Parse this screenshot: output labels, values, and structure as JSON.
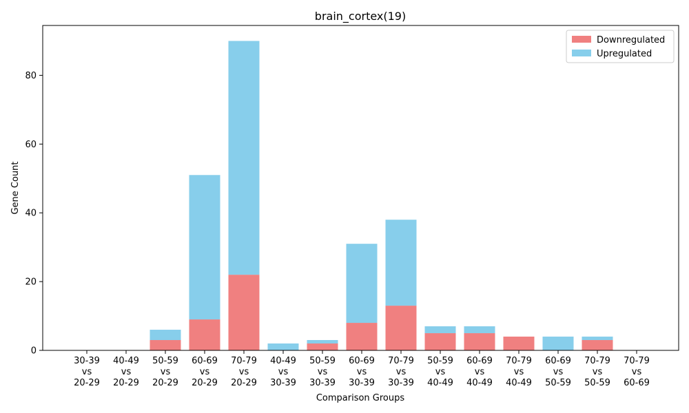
{
  "chart_data": {
    "type": "bar",
    "stacked": true,
    "title": "brain_cortex(19)",
    "xlabel": "Comparison Groups",
    "ylabel": "Gene Count",
    "ylim": [
      0,
      94.5
    ],
    "yticks": [
      0,
      20,
      40,
      60,
      80
    ],
    "grid": false,
    "legend_position": "top-right",
    "categories": [
      [
        "30-39",
        "vs",
        "20-29"
      ],
      [
        "40-49",
        "vs",
        "20-29"
      ],
      [
        "50-59",
        "vs",
        "20-29"
      ],
      [
        "60-69",
        "vs",
        "20-29"
      ],
      [
        "70-79",
        "vs",
        "20-29"
      ],
      [
        "40-49",
        "vs",
        "30-39"
      ],
      [
        "50-59",
        "vs",
        "30-39"
      ],
      [
        "60-69",
        "vs",
        "30-39"
      ],
      [
        "70-79",
        "vs",
        "30-39"
      ],
      [
        "50-59",
        "vs",
        "40-49"
      ],
      [
        "60-69",
        "vs",
        "40-49"
      ],
      [
        "70-79",
        "vs",
        "40-49"
      ],
      [
        "60-69",
        "vs",
        "50-59"
      ],
      [
        "70-79",
        "vs",
        "50-59"
      ],
      [
        "70-79",
        "vs",
        "60-69"
      ]
    ],
    "series": [
      {
        "name": "Downregulated",
        "color": "#f08080",
        "values": [
          0,
          0,
          3,
          9,
          22,
          0,
          2,
          8,
          13,
          5,
          5,
          4,
          0,
          3,
          0
        ]
      },
      {
        "name": "Upregulated",
        "color": "#87ceeb",
        "values": [
          0,
          0,
          3,
          42,
          68,
          2,
          1,
          23,
          25,
          2,
          2,
          0,
          4,
          1,
          0
        ]
      }
    ]
  }
}
